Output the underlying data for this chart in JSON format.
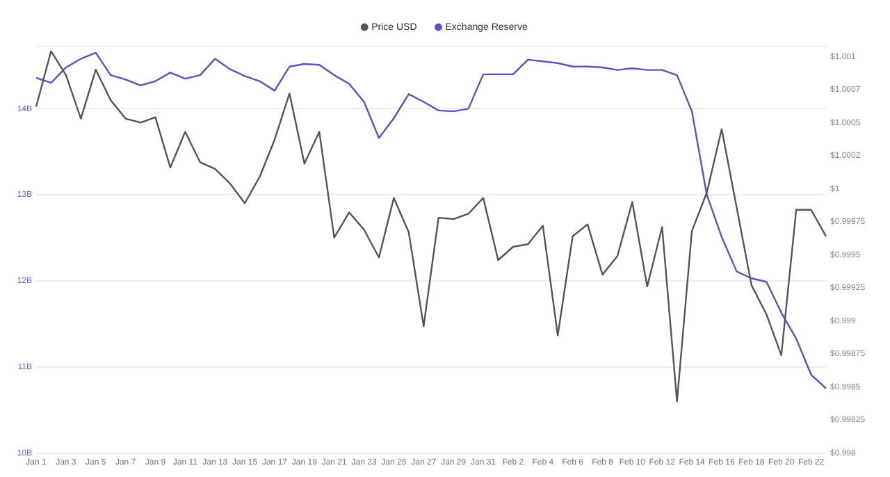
{
  "chart_data": {
    "type": "line",
    "categories": [
      "Jan 1",
      null,
      "Jan 3",
      null,
      "Jan 5",
      null,
      "Jan 7",
      null,
      "Jan 9",
      null,
      "Jan 11",
      null,
      "Jan 13",
      null,
      "Jan 15",
      null,
      "Jan 17",
      null,
      "Jan 19",
      null,
      "Jan 21",
      null,
      "Jan 23",
      null,
      "Jan 25",
      null,
      "Jan 27",
      null,
      "Jan 29",
      null,
      "Jan 31",
      null,
      "Feb 2",
      null,
      "Feb 4",
      null,
      "Feb 6",
      null,
      "Feb 8",
      null,
      "Feb 10",
      null,
      "Feb 12",
      null,
      "Feb 14",
      null,
      "Feb 16",
      null,
      "Feb 18",
      null,
      "Feb 20",
      null,
      "Feb 22",
      null
    ],
    "series": [
      {
        "name": "Price USD",
        "type": "line",
        "axis": "y2",
        "color": "#555555",
        "values": [
          1.00062,
          1.00104,
          1.00086,
          1.00053,
          1.0009,
          1.00067,
          1.00053,
          1.0005,
          1.00054,
          1.00016,
          1.00043,
          1.0002,
          1.00015,
          1.00004,
          0.99989,
          1.00009,
          1.00037,
          1.00072,
          1.00019,
          1.00043,
          0.99963,
          0.99982,
          0.99969,
          0.99948,
          0.99993,
          0.99967,
          0.99896,
          0.99978,
          0.99977,
          0.99981,
          0.99993,
          0.99946,
          0.99956,
          0.99958,
          0.99972,
          0.99889,
          0.99964,
          0.99973,
          0.99935,
          0.99949,
          0.9999,
          0.99926,
          0.99971,
          0.99839,
          0.99968,
          0.99997,
          1.00045,
          0.99986,
          0.99927,
          0.99905,
          0.99874,
          0.99984,
          0.99984,
          0.99964
        ]
      },
      {
        "name": "Exchange Reserve",
        "type": "line",
        "axis": "y",
        "color": "#5a52c6",
        "values": [
          14.36,
          14.3,
          14.48,
          14.58,
          14.65,
          14.39,
          14.34,
          14.27,
          14.32,
          14.42,
          14.35,
          14.39,
          14.58,
          14.46,
          14.38,
          14.32,
          14.21,
          14.49,
          14.52,
          14.51,
          14.39,
          14.29,
          14.08,
          13.66,
          13.89,
          14.17,
          14.08,
          13.98,
          13.97,
          14.0,
          14.4,
          14.4,
          14.4,
          14.57,
          14.55,
          14.53,
          14.49,
          14.49,
          14.48,
          14.45,
          14.47,
          14.45,
          14.45,
          14.39,
          13.97,
          13.0,
          12.51,
          12.11,
          12.03,
          11.99,
          11.63,
          11.33,
          10.91,
          10.75
        ]
      }
    ],
    "ylim": [
      10,
      14.73
    ],
    "yticks": [
      {
        "value": 10,
        "label": "10B"
      },
      {
        "value": 11,
        "label": "11B"
      },
      {
        "value": 12,
        "label": "12B"
      },
      {
        "value": 13,
        "label": "13B"
      },
      {
        "value": 14,
        "label": "14B"
      }
    ],
    "y2lim": [
      0.998,
      1.00108
    ],
    "y2ticks": [
      {
        "value": 0.998,
        "label": "$0.998"
      },
      {
        "value": 0.99825,
        "label": "$0.99825"
      },
      {
        "value": 0.9985,
        "label": "$0.9985"
      },
      {
        "value": 0.99875,
        "label": "$0.99875"
      },
      {
        "value": 0.999,
        "label": "$0.999"
      },
      {
        "value": 0.99925,
        "label": "$0.99925"
      },
      {
        "value": 0.9995,
        "label": "$0.9995"
      },
      {
        "value": 0.99975,
        "label": "$0.99975"
      },
      {
        "value": 1,
        "label": "$1"
      },
      {
        "value": 1.00025,
        "label": "$1.0002"
      },
      {
        "value": 1.0005,
        "label": "$1.0005"
      },
      {
        "value": 1.00075,
        "label": "$1.0007"
      },
      {
        "value": 1.001,
        "label": "$1.001"
      }
    ],
    "grid": "y",
    "legend": "top",
    "marker": "none"
  }
}
